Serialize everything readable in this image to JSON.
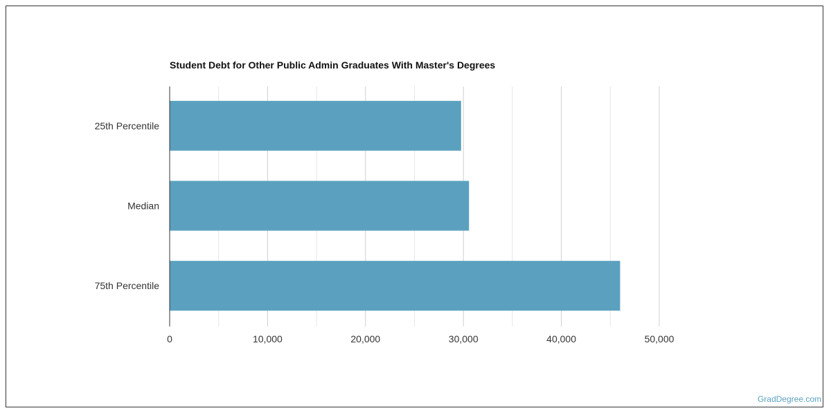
{
  "chart_data": {
    "type": "bar",
    "orientation": "horizontal",
    "title": "Student Debt for Other Public Admin Graduates With Master's Degrees",
    "categories": [
      "25th Percentile",
      "Median",
      "75th Percentile"
    ],
    "values": [
      29760,
      30570,
      46000
    ],
    "xlim": [
      0,
      50000
    ],
    "xticks": [
      0,
      10000,
      20000,
      30000,
      40000,
      50000
    ],
    "xtick_labels": [
      "0",
      "10,000",
      "20,000",
      "30,000",
      "40,000",
      "50,000"
    ],
    "grid": true,
    "bar_color": "#5ba1bf"
  },
  "credit": "GradDegree.com"
}
